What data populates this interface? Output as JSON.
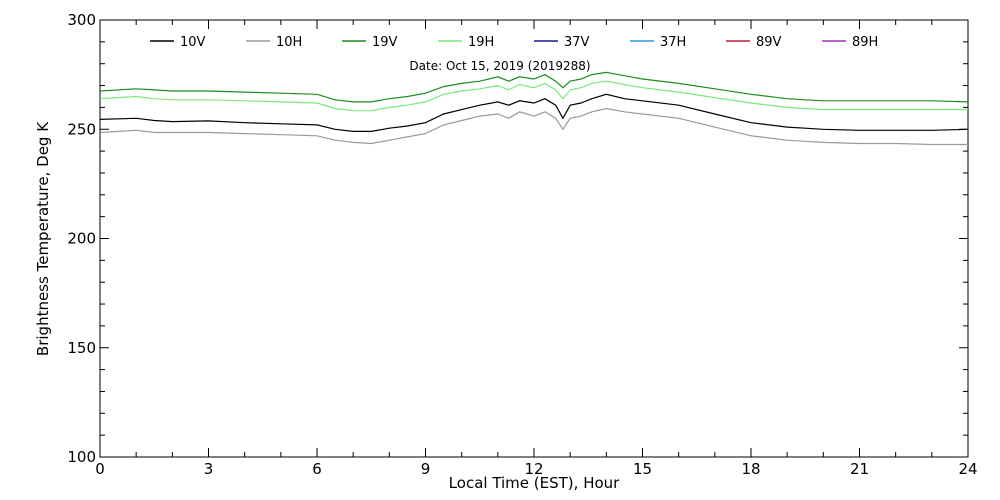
{
  "chart_data": {
    "type": "line",
    "title": "",
    "annotation": "Date: Oct 15, 2019 (2019288)",
    "xlabel": "Local Time (EST), Hour",
    "ylabel": "Brightness Temperature, Deg  K",
    "xlim": [
      0,
      24
    ],
    "ylim": [
      100,
      300
    ],
    "x_ticks": [
      "0",
      "3",
      "6",
      "9",
      "12",
      "15",
      "18",
      "21",
      "24"
    ],
    "y_ticks": [
      "100",
      "150",
      "200",
      "250",
      "300"
    ],
    "grid": false,
    "legend_position": "top",
    "series": [
      {
        "name": "10V",
        "color": "#000000",
        "points": [
          [
            0,
            254.5
          ],
          [
            1,
            255
          ],
          [
            1.5,
            254
          ],
          [
            2,
            253.5
          ],
          [
            3,
            253.8
          ],
          [
            4,
            253
          ],
          [
            5,
            252.5
          ],
          [
            6,
            252
          ],
          [
            6.5,
            250
          ],
          [
            7,
            249
          ],
          [
            7.5,
            249
          ],
          [
            8,
            250.5
          ],
          [
            8.5,
            251.5
          ],
          [
            9,
            253
          ],
          [
            9.5,
            257
          ],
          [
            10,
            259
          ],
          [
            10.5,
            261
          ],
          [
            11,
            262.5
          ],
          [
            11.3,
            261
          ],
          [
            11.6,
            263
          ],
          [
            12,
            262
          ],
          [
            12.3,
            264
          ],
          [
            12.6,
            261
          ],
          [
            12.8,
            255
          ],
          [
            13,
            261
          ],
          [
            13.3,
            262
          ],
          [
            13.6,
            264
          ],
          [
            14,
            266
          ],
          [
            14.5,
            264
          ],
          [
            15,
            263
          ],
          [
            16,
            261
          ],
          [
            17,
            257
          ],
          [
            18,
            253
          ],
          [
            19,
            251
          ],
          [
            19.5,
            250.5
          ],
          [
            20,
            250
          ],
          [
            21,
            249.5
          ],
          [
            22,
            249.5
          ],
          [
            23,
            249.5
          ],
          [
            24,
            250
          ]
        ]
      },
      {
        "name": "10H",
        "color": "#9a9a9a",
        "points": [
          [
            0,
            248.5
          ],
          [
            1,
            249.5
          ],
          [
            1.5,
            248.5
          ],
          [
            2,
            248.5
          ],
          [
            3,
            248.5
          ],
          [
            4,
            248
          ],
          [
            5,
            247.5
          ],
          [
            6,
            247
          ],
          [
            6.5,
            245
          ],
          [
            7,
            244
          ],
          [
            7.5,
            243.5
          ],
          [
            8,
            245
          ],
          [
            8.5,
            246.5
          ],
          [
            9,
            248
          ],
          [
            9.5,
            252
          ],
          [
            10,
            254
          ],
          [
            10.5,
            256
          ],
          [
            11,
            257
          ],
          [
            11.3,
            255
          ],
          [
            11.6,
            258
          ],
          [
            12,
            256
          ],
          [
            12.3,
            258
          ],
          [
            12.6,
            255
          ],
          [
            12.8,
            250
          ],
          [
            13,
            255
          ],
          [
            13.3,
            256
          ],
          [
            13.6,
            258
          ],
          [
            14,
            259.5
          ],
          [
            14.5,
            258
          ],
          [
            15,
            257
          ],
          [
            16,
            255
          ],
          [
            17,
            251
          ],
          [
            18,
            247
          ],
          [
            19,
            245
          ],
          [
            19.5,
            244.5
          ],
          [
            20,
            244
          ],
          [
            21,
            243.5
          ],
          [
            22,
            243.5
          ],
          [
            23,
            243
          ],
          [
            24,
            243
          ]
        ]
      },
      {
        "name": "19V",
        "color": "#1e8c1e",
        "points": [
          [
            0,
            267.5
          ],
          [
            1,
            268.5
          ],
          [
            1.5,
            268
          ],
          [
            2,
            267.5
          ],
          [
            3,
            267.5
          ],
          [
            4,
            267
          ],
          [
            5,
            266.5
          ],
          [
            6,
            266
          ],
          [
            6.5,
            263.5
          ],
          [
            7,
            262.5
          ],
          [
            7.5,
            262.5
          ],
          [
            8,
            264
          ],
          [
            8.5,
            265
          ],
          [
            9,
            266.5
          ],
          [
            9.5,
            269.5
          ],
          [
            10,
            271
          ],
          [
            10.5,
            272
          ],
          [
            11,
            274
          ],
          [
            11.3,
            272
          ],
          [
            11.6,
            274
          ],
          [
            12,
            273
          ],
          [
            12.3,
            275
          ],
          [
            12.6,
            272
          ],
          [
            12.8,
            269
          ],
          [
            13,
            272
          ],
          [
            13.3,
            273
          ],
          [
            13.6,
            275
          ],
          [
            14,
            276
          ],
          [
            14.5,
            274.5
          ],
          [
            15,
            273
          ],
          [
            16,
            271
          ],
          [
            17,
            268.5
          ],
          [
            18,
            266
          ],
          [
            19,
            264
          ],
          [
            19.5,
            263.5
          ],
          [
            20,
            263
          ],
          [
            21,
            263
          ],
          [
            22,
            263
          ],
          [
            23,
            263
          ],
          [
            24,
            262.5
          ]
        ]
      },
      {
        "name": "19H",
        "color": "#7ce87c",
        "points": [
          [
            0,
            264
          ],
          [
            1,
            265
          ],
          [
            1.5,
            264
          ],
          [
            2,
            263.5
          ],
          [
            3,
            263.5
          ],
          [
            4,
            263
          ],
          [
            5,
            262.5
          ],
          [
            6,
            262
          ],
          [
            6.5,
            259.5
          ],
          [
            7,
            258.5
          ],
          [
            7.5,
            258.5
          ],
          [
            8,
            260
          ],
          [
            8.5,
            261
          ],
          [
            9,
            262.5
          ],
          [
            9.5,
            266
          ],
          [
            10,
            267.5
          ],
          [
            10.5,
            268.5
          ],
          [
            11,
            270
          ],
          [
            11.3,
            268
          ],
          [
            11.6,
            270.5
          ],
          [
            12,
            269
          ],
          [
            12.3,
            271
          ],
          [
            12.6,
            268
          ],
          [
            12.8,
            264
          ],
          [
            13,
            268
          ],
          [
            13.3,
            269
          ],
          [
            13.6,
            271
          ],
          [
            14,
            272
          ],
          [
            14.5,
            270.5
          ],
          [
            15,
            269
          ],
          [
            16,
            267
          ],
          [
            17,
            264.5
          ],
          [
            18,
            262
          ],
          [
            19,
            260
          ],
          [
            19.5,
            259.5
          ],
          [
            20,
            259
          ],
          [
            21,
            259
          ],
          [
            22,
            259
          ],
          [
            23,
            259
          ],
          [
            24,
            259
          ]
        ]
      },
      {
        "name": "37V",
        "color": "#1c1c8c",
        "points": []
      },
      {
        "name": "37H",
        "color": "#2a9ad8",
        "points": []
      },
      {
        "name": "89V",
        "color": "#c0203c",
        "points": []
      },
      {
        "name": "89H",
        "color": "#a030b8",
        "points": []
      }
    ]
  }
}
